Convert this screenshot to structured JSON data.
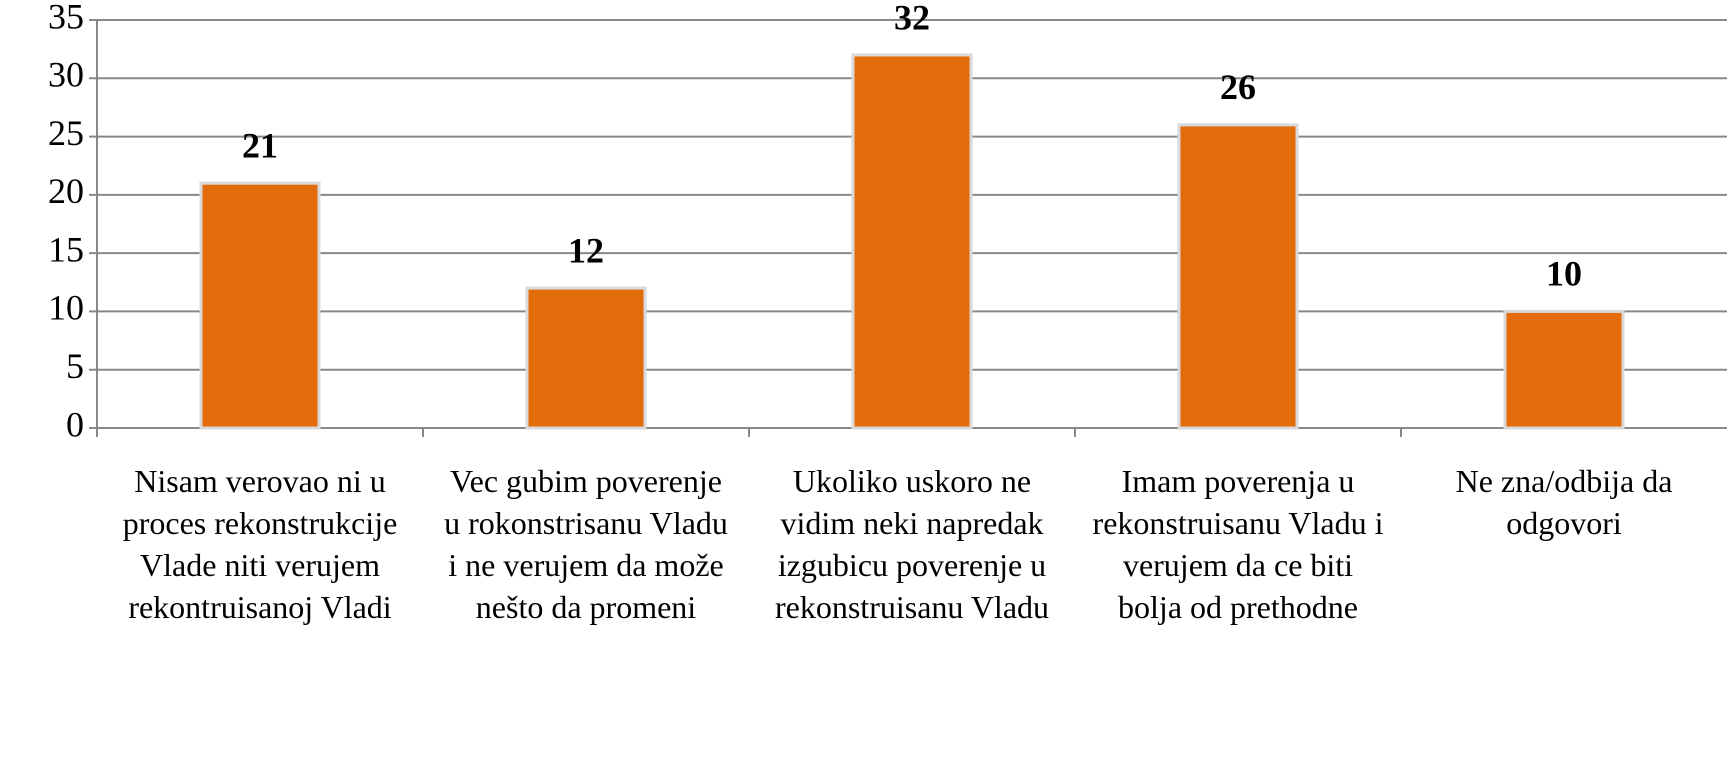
{
  "chart_data": {
    "type": "bar",
    "categories": [
      "Nisam verovao ni u proces rekonstrukcije Vlade niti verujem rekontruisanoj Vladi",
      "Vec gubim poverenje u rokonstrisanu Vladu i ne verujem da može nešto da promeni",
      "Ukoliko uskoro ne vidim neki napredak izgubicu poverenje u rekonstruisanu Vladu",
      "Imam poverenja u rekonstruisanu Vladu i verujem da ce biti bolja od prethodne",
      "Ne zna/odbija da odgovori"
    ],
    "values": [
      21,
      12,
      32,
      26,
      10
    ],
    "color": "#e36c0a",
    "ylim": [
      0,
      35
    ],
    "yticks": [
      0,
      5,
      10,
      15,
      20,
      25,
      30,
      35
    ],
    "grid": true
  }
}
